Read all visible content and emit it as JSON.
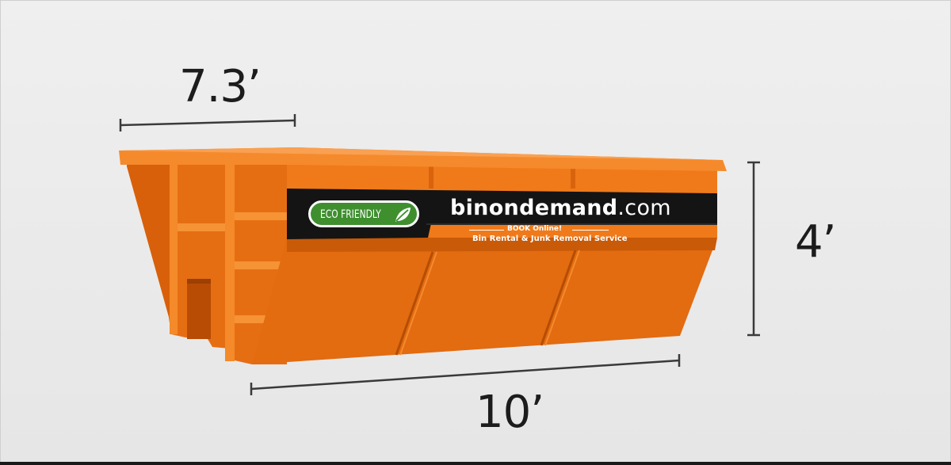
{
  "dimensions": {
    "width": "7.3’",
    "height": "4’",
    "length": "10’"
  },
  "banner": {
    "badge": "ECO FRIENDLY",
    "brand_bold": "binondemand",
    "brand_suffix": ".com",
    "cta": "BOOK Online!",
    "service": "Bin Rental & Junk Removal Service"
  },
  "colors": {
    "bin_orange": "#f07a1a",
    "bin_dark": "#c95a08",
    "banner_black": "#141414",
    "eco_green": "#3f8f2f"
  },
  "icons": {
    "badge_icon": "leaf-icon"
  }
}
